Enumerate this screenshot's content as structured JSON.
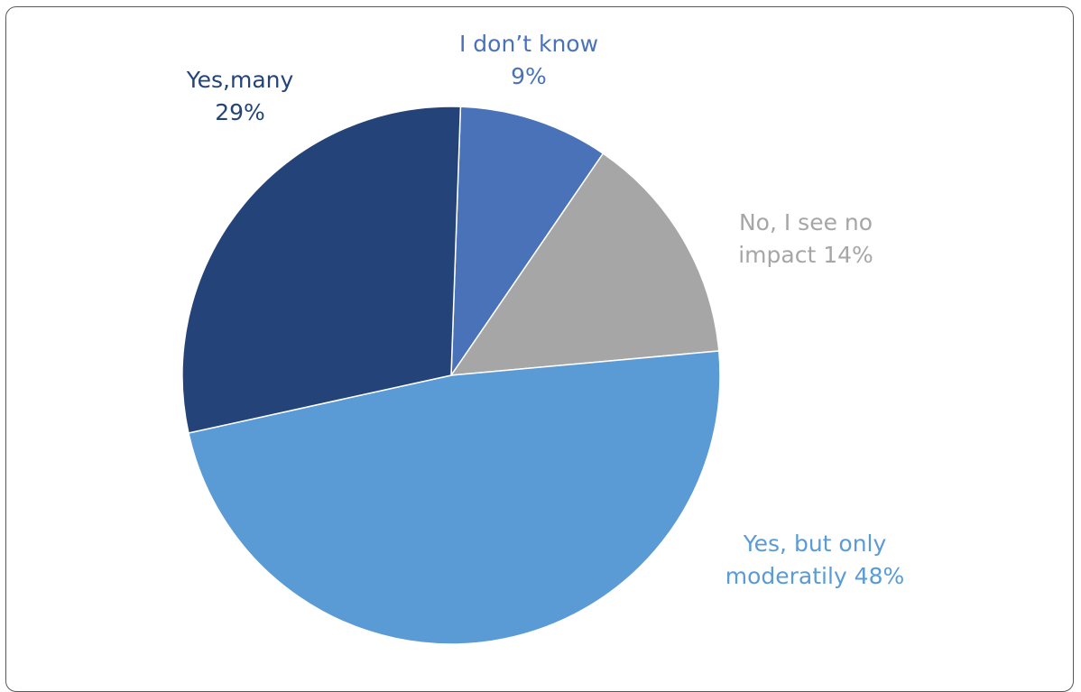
{
  "chart_data": {
    "type": "pie",
    "title": "",
    "slices": [
      {
        "label_lines": [
          "I don’t know",
          "9%"
        ],
        "name": "I don’t know",
        "value": 9,
        "color": "#4A72B8",
        "label_color": "#4A72B8"
      },
      {
        "label_lines": [
          "No, I see no",
          "impact 14%"
        ],
        "name": "No, I see no impact",
        "value": 14,
        "color": "#A6A6A6",
        "label_color": "#A6A6A6"
      },
      {
        "label_lines": [
          "Yes, but only",
          "moderatily 48%"
        ],
        "name": "Yes, but only moderatily",
        "value": 48,
        "color": "#5B9BD5",
        "label_color": "#5B9BD5"
      },
      {
        "label_lines": [
          "Yes,many",
          "29%"
        ],
        "name": "Yes,many",
        "value": 29,
        "color": "#244479",
        "label_color": "#244479"
      }
    ]
  }
}
